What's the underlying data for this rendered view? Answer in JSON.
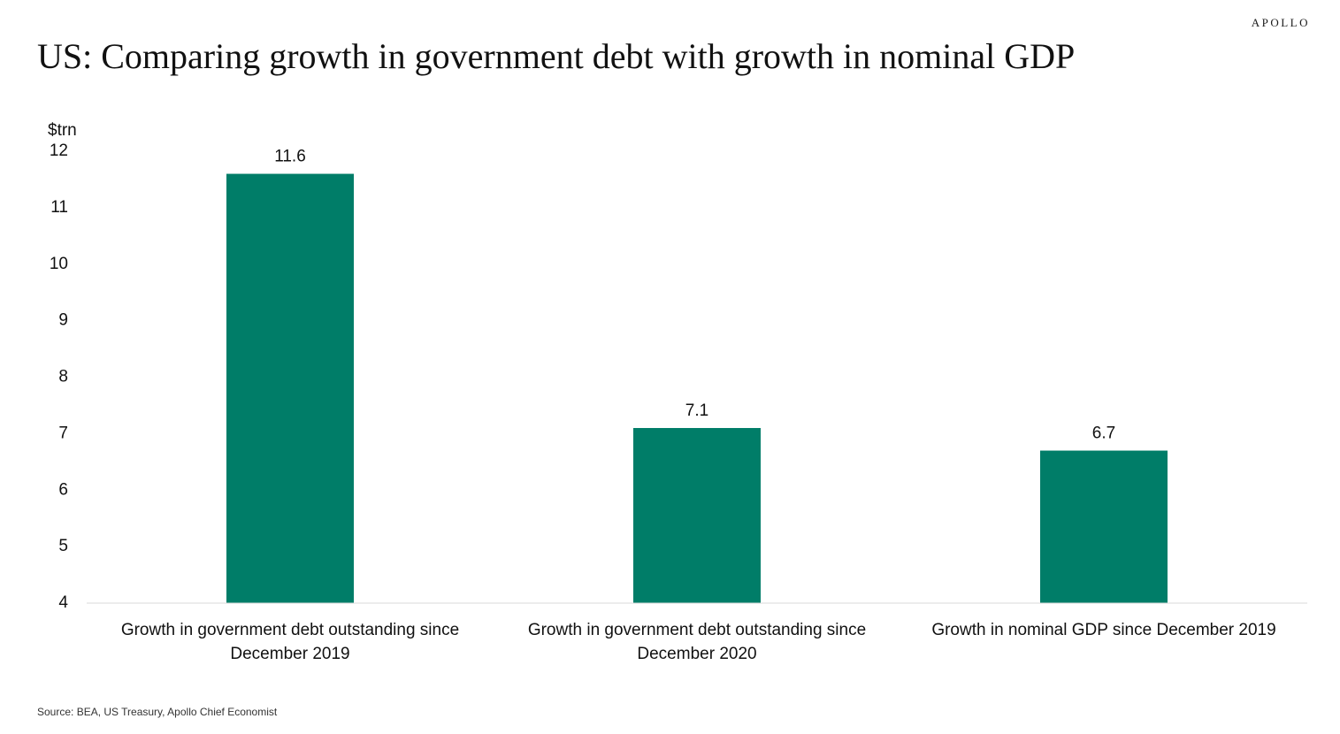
{
  "brand": "APOLLO",
  "title": "US: Comparing growth in government debt with growth in nominal GDP",
  "source": "Source: BEA, US Treasury, Apollo Chief Economist",
  "chart_data": {
    "type": "bar",
    "title": "US: Comparing growth in government debt with growth in nominal GDP",
    "ylabel": "$trn",
    "xlabel": "",
    "ylim": [
      4,
      12
    ],
    "yticks": [
      4,
      5,
      6,
      7,
      8,
      9,
      10,
      11,
      12
    ],
    "grid": false,
    "categories": [
      [
        "Growth in government debt outstanding since",
        "December 2019"
      ],
      [
        "Growth in government debt outstanding since",
        "December 2020"
      ],
      [
        "Growth in nominal GDP since December 2019"
      ]
    ],
    "values": [
      11.6,
      7.1,
      6.7
    ],
    "data_labels": [
      "11.6",
      "7.1",
      "6.7"
    ],
    "bar_color": "#007d68"
  }
}
